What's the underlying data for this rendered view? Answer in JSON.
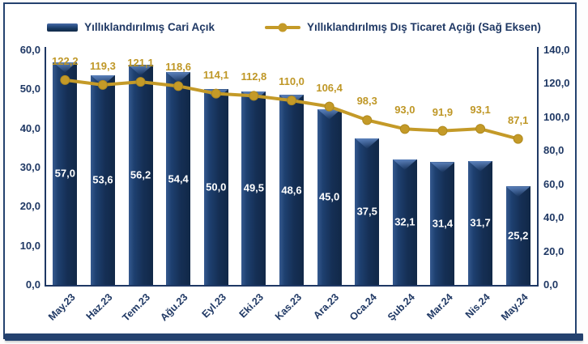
{
  "legend": {
    "bar_label": "Yıllıklandırılmış Cari Açık",
    "line_label": "Yıllıklandırılmış Dış Ticaret Açığı (Sağ Eksen)"
  },
  "colors": {
    "bar": "#17375E",
    "bar_highlight": "#44699F",
    "line": "#C49A28",
    "line_label": "#BF9726",
    "axis_text": "#1F3864",
    "frame": "#24426F",
    "bar_value_text": "#FFFFFF"
  },
  "chart_data": {
    "type": "bar",
    "subtype": "combo bar+line, dual axis",
    "title": "",
    "grid": false,
    "legend_position": "top",
    "categories": [
      "May.23",
      "Haz.23",
      "Tem.23",
      "Ağu.23",
      "Eyl.23",
      "Eki.23",
      "Kas.23",
      "Ara.23",
      "Oca.24",
      "Şub.24",
      "Mar.24",
      "Nis.24",
      "May.24"
    ],
    "series": [
      {
        "name": "Yıllıklandırılmış Cari Açık",
        "type": "bar",
        "axis": "left",
        "values": [
          57.0,
          53.6,
          56.2,
          54.4,
          50.0,
          49.5,
          48.6,
          45.0,
          37.5,
          32.1,
          31.4,
          31.7,
          25.2
        ],
        "labels": [
          "57,0",
          "53,6",
          "56,2",
          "54,4",
          "50,0",
          "49,5",
          "48,6",
          "45,0",
          "37,5",
          "32,1",
          "31,4",
          "31,7",
          "25,2"
        ]
      },
      {
        "name": "Yıllıklandırılmış Dış Ticaret Açığı (Sağ Eksen)",
        "type": "line",
        "axis": "right",
        "values": [
          122.2,
          119.3,
          121.1,
          118.6,
          114.1,
          112.8,
          110.0,
          106.4,
          98.3,
          93.0,
          91.9,
          93.1,
          87.1
        ],
        "labels": [
          "122,2",
          "119,3",
          "121,1",
          "118,6",
          "114,1",
          "112,8",
          "110,0",
          "106,4",
          "98,3",
          "93,0",
          "91,9",
          "93,1",
          "87,1"
        ]
      }
    ],
    "left_axis": {
      "min": 0,
      "max": 60,
      "step": 10,
      "tick_labels": [
        "60,0",
        "50,0",
        "40,0",
        "30,0",
        "20,0",
        "10,0",
        "0,0"
      ]
    },
    "right_axis": {
      "min": 0,
      "max": 140,
      "step": 20,
      "tick_labels": [
        "140,0",
        "120,0",
        "100,0",
        "80,0",
        "60,0",
        "40,0",
        "20,0",
        "0,0"
      ]
    }
  }
}
